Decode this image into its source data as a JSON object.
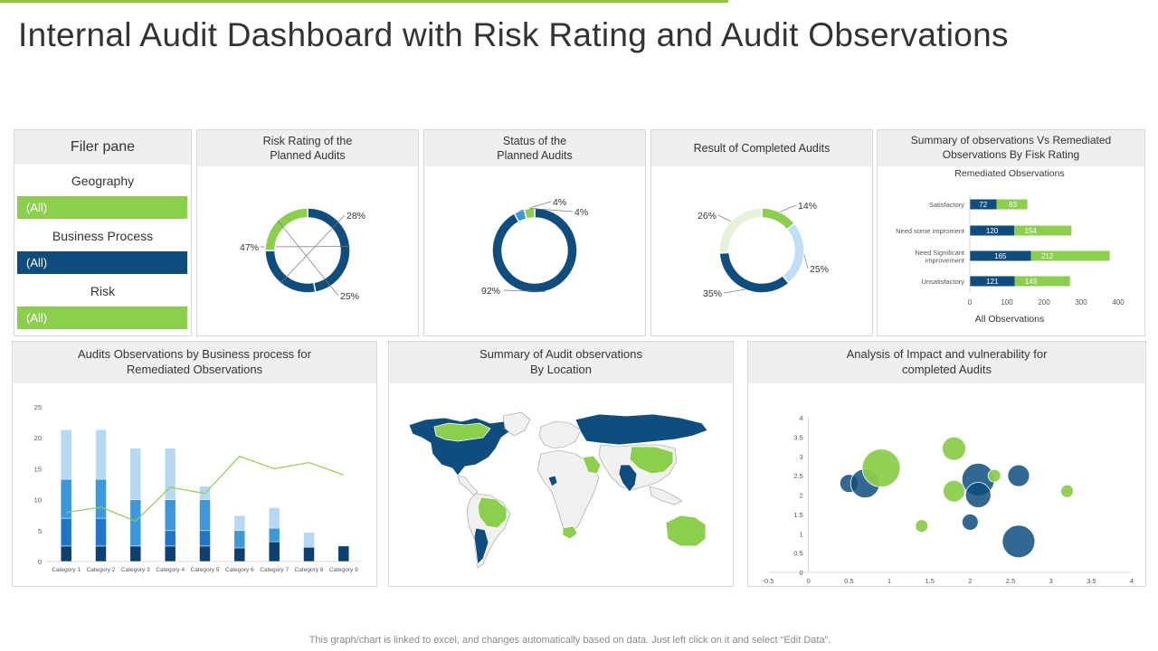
{
  "page": {
    "title": "Internal Audit Dashboard with Risk Rating and Audit Observations",
    "footer": "This graph/chart is linked to excel, and changes automatically based on data. Just left click on it and select “Edit Data”."
  },
  "colors": {
    "navy": "#0e4d7e",
    "green": "#8ccf4d",
    "light_green": "#e3f2d9",
    "light_blue": "#bfdff7",
    "mid_blue": "#3d97db",
    "pale_blue": "#b5d8f5",
    "royal_blue": "#1f75c9",
    "dark_blue": "#0d3f70"
  },
  "filter_pane": {
    "title": "Filer pane",
    "geography": {
      "label": "Geography",
      "value": "(All)"
    },
    "business_process": {
      "label": "Business Process",
      "value": "(All)"
    },
    "risk": {
      "label": "Risk",
      "value": "(All)"
    }
  },
  "panels": {
    "risk_rating": "Risk Rating of the\nPlanned Audits",
    "status": "Status of the\nPlanned Audits",
    "result": "Result of Completed Audits",
    "summary": "Summary of observations Vs Remediated\nObservations By Fisk Rating",
    "business": "Audits Observations by Business process for\nRemediated Observations",
    "location": "Summary of Audit observations\nBy Location",
    "impact": "Analysis of Impact and vulnerability  for\ncompleted Audits"
  },
  "chart_data": [
    {
      "type": "pie",
      "id": "risk_rating",
      "values": [
        47,
        28,
        25
      ],
      "labels": [
        "47%",
        "28%",
        "25%"
      ],
      "colors": [
        "#0e4d7e",
        "#0e4d7e",
        "#8ccf4d"
      ]
    },
    {
      "type": "pie",
      "id": "status",
      "values": [
        92,
        4,
        4
      ],
      "labels": [
        "92%",
        "4%",
        "4%"
      ],
      "colors": [
        "#0e4d7e",
        "#3d97db",
        "#8ccf4d"
      ]
    },
    {
      "type": "pie",
      "id": "result",
      "values": [
        14,
        25,
        35,
        26
      ],
      "labels": [
        "14%",
        "25%",
        "35%",
        "26%"
      ],
      "colors": [
        "#8ccf4d",
        "#bfdff7",
        "#0e4d7e",
        "#e3f2d9"
      ]
    },
    {
      "type": "bar",
      "id": "summary",
      "orientation": "horizontal",
      "stacked": true,
      "title": "Remediated Observations",
      "xlabel": "All Observations",
      "categories": [
        "Satisfactory",
        "Need some improment",
        "Need Significant improvement",
        "Unsatisfactory"
      ],
      "series": [
        {
          "values": [
            72,
            120,
            165,
            121
          ]
        },
        {
          "values": [
            83,
            154,
            212,
            149
          ]
        }
      ],
      "xticks": [
        "0",
        "100",
        "200",
        "300",
        "400"
      ],
      "xlim": [
        0,
        400
      ]
    },
    {
      "type": "bar",
      "id": "business",
      "stacked": true,
      "categories": [
        "Category 1",
        "Category 2",
        "Category 3",
        "Category 4",
        "Category 5",
        "Category 6",
        "Category 7",
        "Category 8",
        "Category 9"
      ],
      "series": [
        {
          "values": [
            2.5,
            2.5,
            2.5,
            2.5,
            2.5,
            2.2,
            3.2,
            2.3,
            2.5
          ]
        },
        {
          "values": [
            4.5,
            4.5,
            0,
            2.5,
            2.5,
            0,
            0,
            0,
            0
          ]
        },
        {
          "values": [
            6.3,
            6.3,
            7.5,
            5,
            5,
            2.8,
            2.2,
            0,
            0
          ]
        },
        {
          "values": [
            8,
            8,
            8.3,
            8.3,
            2.2,
            2.4,
            3.3,
            2.4,
            0
          ]
        }
      ],
      "line": {
        "values": [
          7.9,
          8.8,
          6.5,
          12,
          11,
          17,
          15,
          16,
          14
        ]
      },
      "yticks": [
        "0",
        "5",
        "10",
        "15",
        "20",
        "25"
      ],
      "ylim": [
        0,
        25
      ]
    },
    {
      "type": "map",
      "id": "location",
      "regions": [
        "North America",
        "South America",
        "Europe",
        "Africa",
        "Asia",
        "Australia"
      ]
    },
    {
      "type": "scatter",
      "id": "impact",
      "variant": "bubble",
      "xticks": [
        "-0.5",
        "0",
        "0.5",
        "1",
        "1.5",
        "2",
        "2.5",
        "3",
        "3.5",
        "4"
      ],
      "xlim": [
        -0.5,
        4
      ],
      "yticks": [
        "0",
        "0.5",
        "1",
        "1.5",
        "2",
        "2.5",
        "3",
        "3.5",
        "4"
      ],
      "ylim": [
        0,
        4
      ],
      "points": [
        {
          "x": 0.5,
          "y": 2.3,
          "r": 1.0,
          "color": "#0e4d7e"
        },
        {
          "x": 0.7,
          "y": 2.3,
          "r": 1.6,
          "color": "#0e4d7e"
        },
        {
          "x": 0.9,
          "y": 2.7,
          "r": 2.1,
          "color": "#8ccf4d"
        },
        {
          "x": 1.4,
          "y": 1.2,
          "r": 0.7,
          "color": "#8ccf4d"
        },
        {
          "x": 1.8,
          "y": 3.2,
          "r": 1.3,
          "color": "#8ccf4d"
        },
        {
          "x": 1.8,
          "y": 2.1,
          "r": 1.2,
          "color": "#8ccf4d"
        },
        {
          "x": 2.0,
          "y": 1.3,
          "r": 0.9,
          "color": "#0e4d7e"
        },
        {
          "x": 2.1,
          "y": 2.4,
          "r": 1.8,
          "color": "#0e4d7e"
        },
        {
          "x": 2.1,
          "y": 2.0,
          "r": 1.4,
          "color": "#0e4d7e"
        },
        {
          "x": 2.3,
          "y": 2.5,
          "r": 0.7,
          "color": "#8ccf4d"
        },
        {
          "x": 2.6,
          "y": 2.5,
          "r": 1.2,
          "color": "#0e4d7e"
        },
        {
          "x": 2.6,
          "y": 0.8,
          "r": 1.8,
          "color": "#0e4d7e"
        },
        {
          "x": 3.2,
          "y": 2.1,
          "r": 0.7,
          "color": "#8ccf4d"
        }
      ]
    }
  ]
}
